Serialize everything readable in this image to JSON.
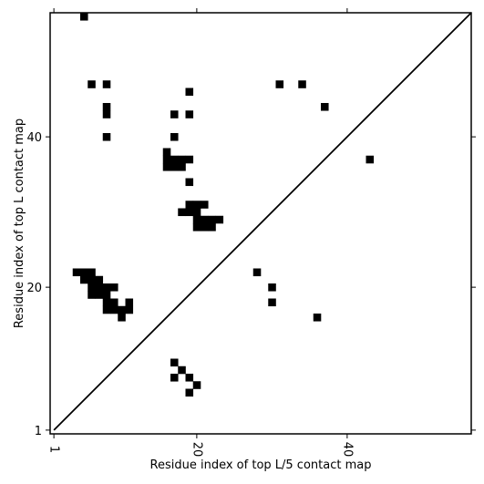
{
  "chart_data": {
    "type": "heatmap",
    "title": "",
    "xlabel": "Residue index of top L/5 contact map",
    "ylabel": "Residue index of top L contact map",
    "xlim": [
      0.5,
      56.5
    ],
    "ylim": [
      0.5,
      56.5
    ],
    "xticks": [
      1,
      20,
      40
    ],
    "yticks": [
      1,
      20,
      40
    ],
    "grid": false,
    "diagonal_line": true,
    "cell_color": "#000000",
    "contacts_top_L": [
      [
        5,
        56
      ],
      [
        6,
        47
      ],
      [
        8,
        47
      ],
      [
        19,
        46
      ],
      [
        8,
        44
      ],
      [
        8,
        43
      ],
      [
        17,
        43
      ],
      [
        19,
        43
      ],
      [
        8,
        40
      ],
      [
        17,
        40
      ],
      [
        16,
        38
      ],
      [
        16,
        37
      ],
      [
        17,
        37
      ],
      [
        18,
        37
      ],
      [
        19,
        37
      ],
      [
        16,
        36
      ],
      [
        17,
        36
      ],
      [
        18,
        36
      ],
      [
        19,
        34
      ],
      [
        19,
        31
      ],
      [
        20,
        31
      ],
      [
        21,
        31
      ],
      [
        18,
        30
      ],
      [
        19,
        30
      ],
      [
        20,
        30
      ],
      [
        20,
        29
      ],
      [
        21,
        29
      ],
      [
        22,
        29
      ],
      [
        23,
        29
      ],
      [
        20,
        28
      ],
      [
        21,
        28
      ],
      [
        22,
        28
      ],
      [
        4,
        22
      ],
      [
        5,
        22
      ],
      [
        6,
        22
      ],
      [
        5,
        21
      ],
      [
        6,
        21
      ],
      [
        7,
        21
      ],
      [
        6,
        20
      ],
      [
        7,
        20
      ],
      [
        8,
        20
      ],
      [
        9,
        20
      ],
      [
        6,
        19
      ],
      [
        7,
        19
      ],
      [
        8,
        19
      ],
      [
        8,
        18
      ],
      [
        9,
        18
      ],
      [
        11,
        18
      ],
      [
        8,
        17
      ],
      [
        9,
        17
      ],
      [
        10,
        17
      ],
      [
        11,
        17
      ],
      [
        10,
        16
      ]
    ],
    "contacts_top_L5": [
      [
        31,
        47
      ],
      [
        34,
        47
      ],
      [
        37,
        44
      ],
      [
        43,
        37
      ],
      [
        28,
        22
      ],
      [
        30,
        20
      ],
      [
        30,
        18
      ],
      [
        36,
        16
      ],
      [
        17,
        10
      ],
      [
        18,
        9
      ],
      [
        17,
        8
      ],
      [
        19,
        8
      ],
      [
        20,
        7
      ],
      [
        19,
        6
      ]
    ]
  }
}
